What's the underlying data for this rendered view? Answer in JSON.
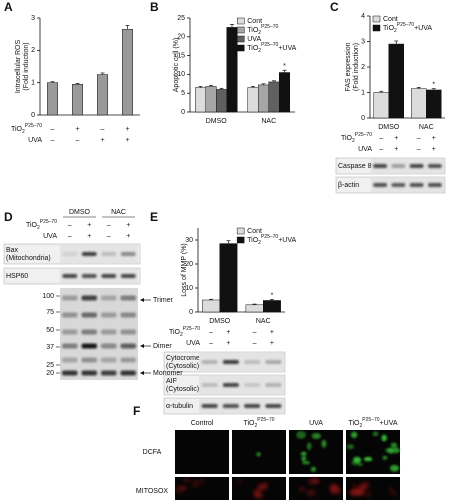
{
  "chart_data": [
    {
      "type": "bar",
      "panel": "A",
      "ylabel": [
        "Intracellular ROS",
        "(Fold induction)"
      ],
      "categories": [
        null,
        null,
        null,
        null
      ],
      "values": [
        1.0,
        0.95,
        1.25,
        2.65
      ],
      "errors": [
        0.03,
        0.03,
        0.05,
        0.12
      ],
      "color": "#9a9a9a",
      "ylim": [
        0,
        3
      ],
      "yticks": [
        0,
        1,
        2,
        3
      ],
      "treatments": [
        {
          "label": {
            "base": "TiO",
            "sub": "2",
            "sup": "P25–70"
          },
          "signs": [
            "–",
            "+",
            "–",
            "+"
          ]
        },
        {
          "label": "UVA",
          "signs": [
            "–",
            "–",
            "+",
            "+"
          ]
        }
      ]
    },
    {
      "type": "bar",
      "panel": "B",
      "ylabel": [
        "Apoptotic cell (%)"
      ],
      "categories": [
        "DMSO",
        "NAC"
      ],
      "series": [
        {
          "name": "Cont",
          "color": "#dcdcdc",
          "values": [
            6.5,
            6.5
          ],
          "errors": [
            0.3,
            0.3
          ]
        },
        {
          "name": {
            "base": "TiO",
            "sub": "2",
            "sup": "P25–70"
          },
          "color": "#a6a6a6",
          "values": [
            6.8,
            7.2
          ],
          "errors": [
            0.3,
            0.3
          ]
        },
        {
          "name": "UVA",
          "color": "#606060",
          "values": [
            6.0,
            8.0
          ],
          "errors": [
            0.3,
            0.3
          ]
        },
        {
          "name": {
            "base": "TiO",
            "sub": "2",
            "sup": "P25–70",
            "suffix": "+UVA"
          },
          "color": "#111111",
          "values": [
            22.5,
            10.5
          ],
          "errors": [
            0.8,
            0.6
          ],
          "significance": [
            null,
            "*"
          ]
        }
      ],
      "ylim": [
        0,
        25
      ],
      "yticks": [
        0,
        5,
        10,
        15,
        20,
        25
      ],
      "legend": "upper right"
    },
    {
      "type": "bar",
      "panel": "C",
      "ylabel": [
        "FAS expression",
        "(Fold induction)"
      ],
      "categories": [
        "DMSO",
        "NAC"
      ],
      "series": [
        {
          "name": "Cont",
          "color": "#dcdcdc",
          "values": [
            1.0,
            1.15
          ],
          "errors": [
            0.05,
            0.05
          ]
        },
        {
          "name": {
            "base": "TiO",
            "sub": "2",
            "sup": "P25–70",
            "suffix": "+UVA"
          },
          "color": "#111111",
          "values": [
            2.9,
            1.1
          ],
          "errors": [
            0.12,
            0.05
          ],
          "significance": [
            null,
            "*"
          ]
        }
      ],
      "ylim": [
        0,
        4
      ],
      "yticks": [
        0,
        1,
        2,
        3,
        4
      ],
      "legend": "upper left",
      "treatments": [
        {
          "label": {
            "base": "TiO",
            "sub": "2",
            "sup": "P25–70"
          },
          "signs": [
            "–",
            "+",
            "–",
            "+"
          ]
        },
        {
          "label": "UVA",
          "signs": [
            "–",
            "+",
            "–",
            "+"
          ]
        }
      ],
      "blots": [
        [
          "Caspase 8"
        ],
        [
          "β-actin"
        ]
      ]
    },
    {
      "type": "bar",
      "panel": "E",
      "ylabel": [
        "Loss of MMP (%)"
      ],
      "categories": [
        "DMSO",
        "NAC"
      ],
      "series": [
        {
          "name": "Cont",
          "color": "#dcdcdc",
          "values": [
            5,
            3
          ],
          "errors": [
            0.3,
            0.3
          ]
        },
        {
          "name": {
            "base": "TiO",
            "sub": "2",
            "sup": "P25–70",
            "suffix": "+UVA"
          },
          "color": "#111111",
          "values": [
            28.5,
            4.8
          ],
          "errors": [
            1.2,
            0.4
          ],
          "significance": [
            null,
            "*"
          ]
        }
      ],
      "ylim": [
        0,
        35
      ],
      "yticks": [
        0,
        10,
        20,
        30
      ],
      "legend": "upper right",
      "treatments": [
        {
          "label": {
            "base": "TiO",
            "sub": "2",
            "sup": "P25–70"
          },
          "signs": [
            "–",
            "+",
            "–",
            "+"
          ]
        },
        {
          "label": "UVA",
          "signs": [
            "–",
            "+",
            "–",
            "+"
          ]
        }
      ],
      "blots": [
        [
          "Cytocrome c",
          "(Cytosolic)"
        ],
        [
          "AIF",
          "(Cytosolic)"
        ],
        [
          "α-tubulin"
        ]
      ]
    }
  ],
  "panel_d": {
    "panel": "D",
    "groups": [
      "DMSO",
      "NAC"
    ],
    "treatments": [
      {
        "label": {
          "base": "TiO",
          "sub": "2",
          "sup": "P25–70"
        },
        "signs": [
          "–",
          "+",
          "–",
          "+"
        ]
      },
      {
        "label": "UVA",
        "signs": [
          "–",
          "+",
          "–",
          "+"
        ]
      }
    ],
    "blots": [
      [
        "Bax",
        "(Mitochondria)"
      ],
      [
        "HSP60"
      ]
    ],
    "markers": [
      "100",
      "75",
      "50",
      "37",
      "25",
      "20"
    ],
    "arrows": [
      "Trimer",
      "Dimer",
      "Monomer"
    ]
  },
  "panel_f": {
    "panel": "F",
    "columns": [
      "Control",
      {
        "base": "TiO",
        "sub": "2",
        "sup": "P25–70"
      },
      "UVA",
      {
        "base": "TiO",
        "sub": "2",
        "sup": "P25–70",
        "suffix": "+UVA"
      }
    ],
    "rows": [
      "DCFA",
      "MITOSOX"
    ]
  }
}
